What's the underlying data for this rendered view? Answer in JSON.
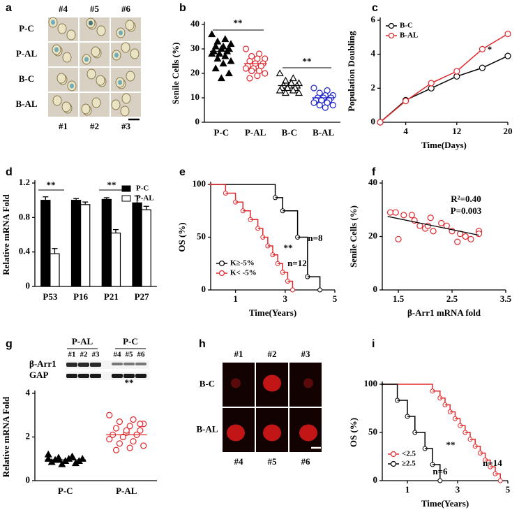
{
  "chart_data": [
    {
      "panel": "b",
      "type": "strip",
      "ylabel": "Senile Cells (%)",
      "categories": [
        "P-C",
        "P-AL",
        "B-C",
        "B-AL"
      ],
      "series": [
        {
          "color": "#000000",
          "marker": "triangle",
          "filled": true,
          "values": [
            36,
            34,
            33,
            32,
            31,
            31,
            30,
            30,
            29,
            29,
            28,
            28,
            27,
            26,
            25,
            24,
            22,
            20,
            18
          ],
          "mean": 29
        },
        {
          "color": "#e0282d",
          "marker": "circle",
          "filled": false,
          "values": [
            30,
            28,
            27,
            26,
            26,
            25,
            24,
            24,
            23,
            23,
            22,
            22,
            21,
            21,
            20,
            19,
            18
          ],
          "mean": 24
        },
        {
          "color": "#000000",
          "marker": "triangle",
          "filled": false,
          "values": [
            20,
            18,
            17,
            16,
            16,
            15,
            15,
            15,
            14,
            14,
            14,
            13,
            13,
            12,
            12,
            16
          ],
          "mean": 15
        },
        {
          "color": "#1a22c8",
          "marker": "circle",
          "filled": false,
          "values": [
            14,
            13,
            12,
            11,
            11,
            10,
            10,
            10,
            9,
            9,
            9,
            8,
            8,
            7,
            7,
            6
          ],
          "mean": 10
        }
      ],
      "ylim": [
        0,
        40
      ],
      "yticks": [
        0,
        10,
        20,
        30,
        40
      ],
      "annotations": [
        "**",
        "**"
      ]
    },
    {
      "panel": "c",
      "type": "line",
      "xlabel": "Time(Days)",
      "ylabel": "Population Doubling",
      "legend": "upper left",
      "x": [
        0,
        4,
        8,
        12,
        16,
        20
      ],
      "xlim": [
        0,
        20
      ],
      "xticks": [
        4,
        12,
        20
      ],
      "ylim": [
        0,
        6
      ],
      "yticks": [
        0,
        2,
        4,
        6
      ],
      "series": [
        {
          "name": "B-C",
          "color": "#000000",
          "values": [
            0,
            1.3,
            2.0,
            2.7,
            3.2,
            3.9
          ]
        },
        {
          "name": "B-AL",
          "color": "#e0282d",
          "values": [
            0,
            1.25,
            2.3,
            3.0,
            4.3,
            5.2
          ]
        }
      ],
      "annotations": [
        "*"
      ]
    },
    {
      "panel": "d",
      "type": "bar",
      "ylabel": "Relative mRNA Fold",
      "legend": "upper right",
      "categories": [
        "P53",
        "P16",
        "P21",
        "P27"
      ],
      "ylim": [
        0,
        1.2
      ],
      "yticks": [
        0,
        0.4,
        0.8,
        1.2
      ],
      "series": [
        {
          "name": "P-C",
          "color": "#000000",
          "values": [
            1.0,
            1.0,
            1.01,
            0.97
          ],
          "errors": [
            0.04,
            0.02,
            0.02,
            0.08
          ]
        },
        {
          "name": "P-AL",
          "color": "#ffffff",
          "values": [
            0.38,
            0.95,
            0.62,
            0.89
          ],
          "errors": [
            0.06,
            0.03,
            0.04,
            0.04
          ]
        }
      ],
      "annotations": [
        "**",
        "**"
      ]
    },
    {
      "panel": "e",
      "type": "step",
      "xlabel": "Time(Years)",
      "ylabel": "OS (%)",
      "legend": "lower left",
      "xlim": [
        0,
        5
      ],
      "xticks": [
        1,
        3,
        5
      ],
      "ylim": [
        0,
        100
      ],
      "yticks": [
        0,
        50,
        100
      ],
      "series": [
        {
          "name": "K≥-5%",
          "color": "#000000",
          "x": [
            0,
            2.6,
            2.9,
            3.5,
            3.9,
            4.4
          ],
          "values": [
            100,
            87.5,
            75,
            50,
            12.5,
            0
          ]
        },
        {
          "name": "K< -5%",
          "color": "#e0282d",
          "x": [
            0,
            0.6,
            1.0,
            1.3,
            1.6,
            1.9,
            2.1,
            2.3,
            2.5,
            2.7,
            2.9,
            3.1,
            3.3
          ],
          "values": [
            100,
            91.7,
            83.3,
            75,
            66.7,
            58.3,
            50,
            41.7,
            33.3,
            25,
            16.7,
            8.3,
            0
          ]
        }
      ],
      "annotations": [
        "**",
        "n=8",
        "n=12"
      ]
    },
    {
      "panel": "f",
      "type": "scatter",
      "xlabel": "β-Arr1 mRNA fold",
      "ylabel": "Senile Cells (%)",
      "xlim": [
        1.2,
        3.5
      ],
      "xticks": [
        1.5,
        2.5,
        3.5
      ],
      "ylim": [
        0,
        40
      ],
      "yticks": [
        0,
        20,
        40
      ],
      "color": "#e0282d",
      "x": [
        1.35,
        1.45,
        1.5,
        1.6,
        1.75,
        1.8,
        1.9,
        2.0,
        2.05,
        2.1,
        2.15,
        2.3,
        2.4,
        2.5,
        2.6,
        2.65,
        2.75,
        2.85,
        3.0,
        3.0
      ],
      "values": [
        29,
        29,
        19,
        28,
        28,
        26,
        24,
        23,
        24,
        27,
        22,
        25,
        24,
        22,
        18,
        21,
        20,
        19,
        22,
        21
      ],
      "fit": {
        "x": [
          1.3,
          3.0
        ],
        "values": [
          27.5,
          20.5
        ]
      },
      "annotations": [
        "R²=0.40",
        "P=0.003"
      ]
    },
    {
      "panel": "g",
      "type": "strip",
      "ylabel": "Relative mRNA Fold",
      "categories": [
        "P-C",
        "P-AL"
      ],
      "series": [
        {
          "color": "#000000",
          "marker": "triangle",
          "filled": true,
          "values": [
            1.2,
            1.1,
            1.05,
            1.0,
            1.0,
            0.95,
            0.9,
            0.9,
            0.85,
            0.8,
            0.75,
            1.0,
            1.1,
            0.95
          ],
          "mean": 0.95
        },
        {
          "color": "#e0282d",
          "marker": "circle",
          "filled": false,
          "values": [
            3.0,
            2.8,
            2.7,
            2.6,
            2.5,
            2.4,
            2.3,
            2.2,
            2.1,
            2.1,
            2.0,
            1.9,
            1.8,
            1.7,
            1.6,
            1.5,
            1.4,
            2.6,
            2.3
          ],
          "mean": 2.1
        }
      ],
      "ylim": [
        0,
        4
      ],
      "yticks": [
        0,
        2,
        4
      ],
      "annotations": [
        "**"
      ]
    },
    {
      "panel": "i",
      "type": "step",
      "xlabel": "Time(Years)",
      "ylabel": "OS (%)",
      "legend": "lower left",
      "xlim": [
        0,
        5
      ],
      "xticks": [
        1,
        3,
        5
      ],
      "ylim": [
        0,
        100
      ],
      "yticks": [
        0,
        50,
        100
      ],
      "series": [
        {
          "name": "<2.5",
          "color": "#e0282d",
          "x": [
            0,
            2.0,
            2.3,
            2.5,
            2.7,
            2.9,
            3.1,
            3.3,
            3.5,
            3.7,
            3.9,
            4.1,
            4.3,
            4.5,
            4.7
          ],
          "values": [
            100,
            92.9,
            85.7,
            78.6,
            71.4,
            64.3,
            57.1,
            50,
            42.9,
            35.7,
            28.6,
            21.4,
            14.3,
            7.1,
            0
          ]
        },
        {
          "name": "≥2.5",
          "color": "#000000",
          "x": [
            0,
            0.6,
            1.0,
            1.3,
            1.7,
            2.0,
            2.3
          ],
          "values": [
            100,
            83.3,
            66.7,
            50,
            33.3,
            16.7,
            0
          ]
        }
      ],
      "annotations": [
        "**",
        "n=6",
        "n=14"
      ]
    }
  ],
  "image_panels": [
    {
      "panel": "a",
      "column_labels": [
        "#4",
        "#5",
        "#6"
      ],
      "row_labels": [
        "P-C",
        "P-AL",
        "B-C",
        "B-AL"
      ],
      "bottom_labels": [
        "#1",
        "#2",
        "#3"
      ]
    },
    {
      "panel": "h",
      "column_labels": [
        "#1",
        "#2",
        "#3"
      ],
      "row_labels": [
        "B-C",
        "B-AL"
      ],
      "bottom_labels": [
        "#4",
        "#5",
        "#6"
      ]
    }
  ],
  "blot": {
    "group_labels": [
      "P-AL",
      "P-C"
    ],
    "lane_labels": [
      "#1",
      "#2",
      "#3",
      "#4",
      "#5",
      "#6"
    ],
    "row_labels": [
      "β-Arr1",
      "GAP"
    ]
  }
}
